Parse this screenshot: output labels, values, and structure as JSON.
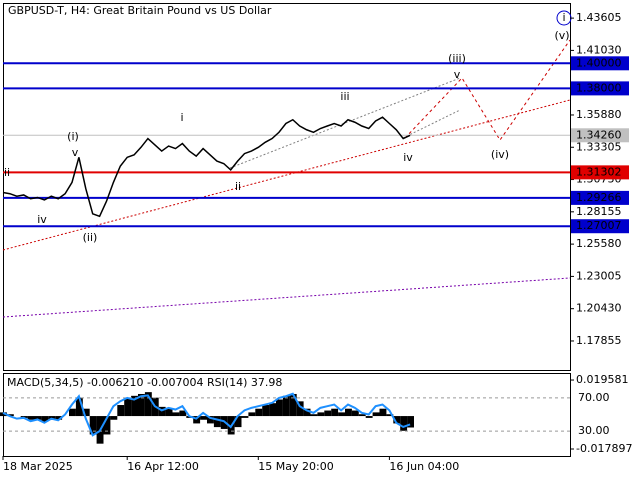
{
  "chart_data": {
    "type": "line",
    "title": "GBPUSD-T, H4:  Great Britain Pound vs US Dollar",
    "categories": [
      "18 Mar 2025",
      null,
      null,
      null,
      null,
      null,
      null,
      null,
      null,
      null,
      null,
      null,
      null,
      null,
      null,
      null,
      null,
      null,
      "16 Apr 12:00",
      null,
      null,
      null,
      null,
      null,
      null,
      null,
      null,
      null,
      null,
      null,
      null,
      null,
      null,
      null,
      null,
      null,
      null,
      "15 May 20:00",
      null,
      null,
      null,
      null,
      null,
      null,
      null,
      null,
      null,
      null,
      null,
      null,
      null,
      null,
      null,
      null,
      null,
      null,
      "16 Jun 04:00",
      null,
      null,
      null
    ],
    "series": [
      {
        "name": "GBPUSD-T",
        "color": "#000000",
        "values": [
          1.297,
          1.296,
          1.294,
          1.295,
          1.292,
          1.293,
          1.291,
          1.294,
          1.292,
          1.296,
          1.305,
          1.325,
          1.3,
          1.28,
          1.278,
          1.29,
          1.305,
          1.318,
          1.325,
          1.327,
          1.333,
          1.34,
          1.335,
          1.33,
          1.334,
          1.332,
          1.336,
          1.33,
          1.326,
          1.332,
          1.327,
          1.322,
          1.32,
          1.315,
          1.322,
          1.328,
          1.33,
          1.333,
          1.337,
          1.34,
          1.345,
          1.352,
          1.355,
          1.35,
          1.347,
          1.345,
          1.348,
          1.35,
          1.352,
          1.35,
          1.355,
          1.353,
          1.35,
          1.348,
          1.354,
          1.357,
          1.352,
          1.347,
          1.34,
          1.3426
        ]
      }
    ],
    "ylim": [
      1.1554,
      1.4481
    ],
    "yticks": [
      1.43605,
      {
        "value": 1.4103,
        "label": "1.41030"
      },
      {
        "value": 1.3588,
        "label": "1.35880"
      },
      1.33305,
      {
        "value": 1.3073,
        "label": "1.30730"
      },
      1.28155,
      {
        "value": 1.2558,
        "label": "1.25580"
      },
      1.23005,
      {
        "value": 1.2043,
        "label": "1.20430"
      },
      1.17855
    ],
    "levels": [
      {
        "value": 1.4,
        "label": "1.40000",
        "color": "#0000cc"
      },
      {
        "value": 1.38,
        "label": "1.38000",
        "color": "#0000cc"
      },
      {
        "value": 1.3426,
        "label": "1.34260",
        "color": "#c0c0c0"
      },
      {
        "value": 1.31302,
        "label": "1.31302",
        "color": "#e00000"
      },
      {
        "value": 1.29266,
        "label": "1.29266",
        "color": "#0000cc"
      },
      {
        "value": 1.27007,
        "label": "1.27007",
        "color": "#0000cc"
      }
    ],
    "annotations": [
      {
        "text": "(i)",
        "color": "#cc0000"
      },
      {
        "text": "(ii)",
        "color": "#cc0000"
      },
      {
        "text": "(iii)",
        "color": "#cc0000"
      },
      {
        "text": "(iv)",
        "color": "#cc0000"
      },
      {
        "text": "(v)",
        "color": "#cc0000"
      },
      {
        "text": "i",
        "color": "#0000cc"
      },
      {
        "text": "i",
        "color": "#808080"
      },
      {
        "text": "ii",
        "color": "#808080"
      },
      {
        "text": "iii",
        "color": "#808080"
      },
      {
        "text": "iv",
        "color": "#808080"
      },
      {
        "text": "v",
        "color": "#808080"
      },
      {
        "text": "v",
        "color": "#808080"
      },
      {
        "text": "ii",
        "color": "#808080"
      },
      {
        "text": "iv",
        "color": "#808080"
      }
    ],
    "indicator": {
      "label": "MACD(5,34,5) -0.006210 -0.007004 RSI(14) 37.98",
      "macd_color": "#000000",
      "macd": [
        0.002,
        0.001,
        0.0,
        -0.001,
        -0.002,
        -0.002,
        -0.003,
        -0.002,
        -0.002,
        0.0,
        0.004,
        0.01,
        0.004,
        -0.01,
        -0.015,
        -0.01,
        -0.002,
        0.006,
        0.01,
        0.011,
        0.012,
        0.013,
        0.01,
        0.005,
        0.004,
        0.002,
        0.003,
        -0.001,
        -0.004,
        -0.002,
        -0.004,
        -0.006,
        -0.007,
        -0.01,
        -0.006,
        -0.001,
        0.002,
        0.004,
        0.006,
        0.007,
        0.009,
        0.011,
        0.012,
        0.008,
        0.004,
        0.001,
        0.002,
        0.003,
        0.004,
        0.002,
        0.004,
        0.003,
        0.001,
        -0.001,
        0.002,
        0.004,
        0.001,
        -0.004,
        -0.008,
        -0.00621
      ],
      "macd_ylim": [
        -0.0217,
        0.0234
      ],
      "macd_ticks": [
        0.019581,
        -0.017897
      ],
      "rsi_color": "#1e90ff",
      "rsi": [
        52,
        48,
        45,
        46,
        42,
        44,
        40,
        45,
        43,
        50,
        62,
        72,
        45,
        25,
        30,
        45,
        60,
        66,
        70,
        68,
        72,
        73,
        60,
        55,
        58,
        56,
        60,
        48,
        45,
        52,
        46,
        44,
        42,
        35,
        48,
        55,
        58,
        60,
        62,
        64,
        70,
        72,
        75,
        60,
        55,
        52,
        58,
        60,
        62,
        55,
        62,
        58,
        52,
        50,
        60,
        62,
        55,
        40,
        35,
        37.98
      ],
      "rsi_ylim": [
        0,
        100
      ],
      "rsi_ticks": [
        {
          "value": 70,
          "label": "70.00"
        },
        {
          "value": 30,
          "label": "30.00"
        }
      ]
    }
  }
}
